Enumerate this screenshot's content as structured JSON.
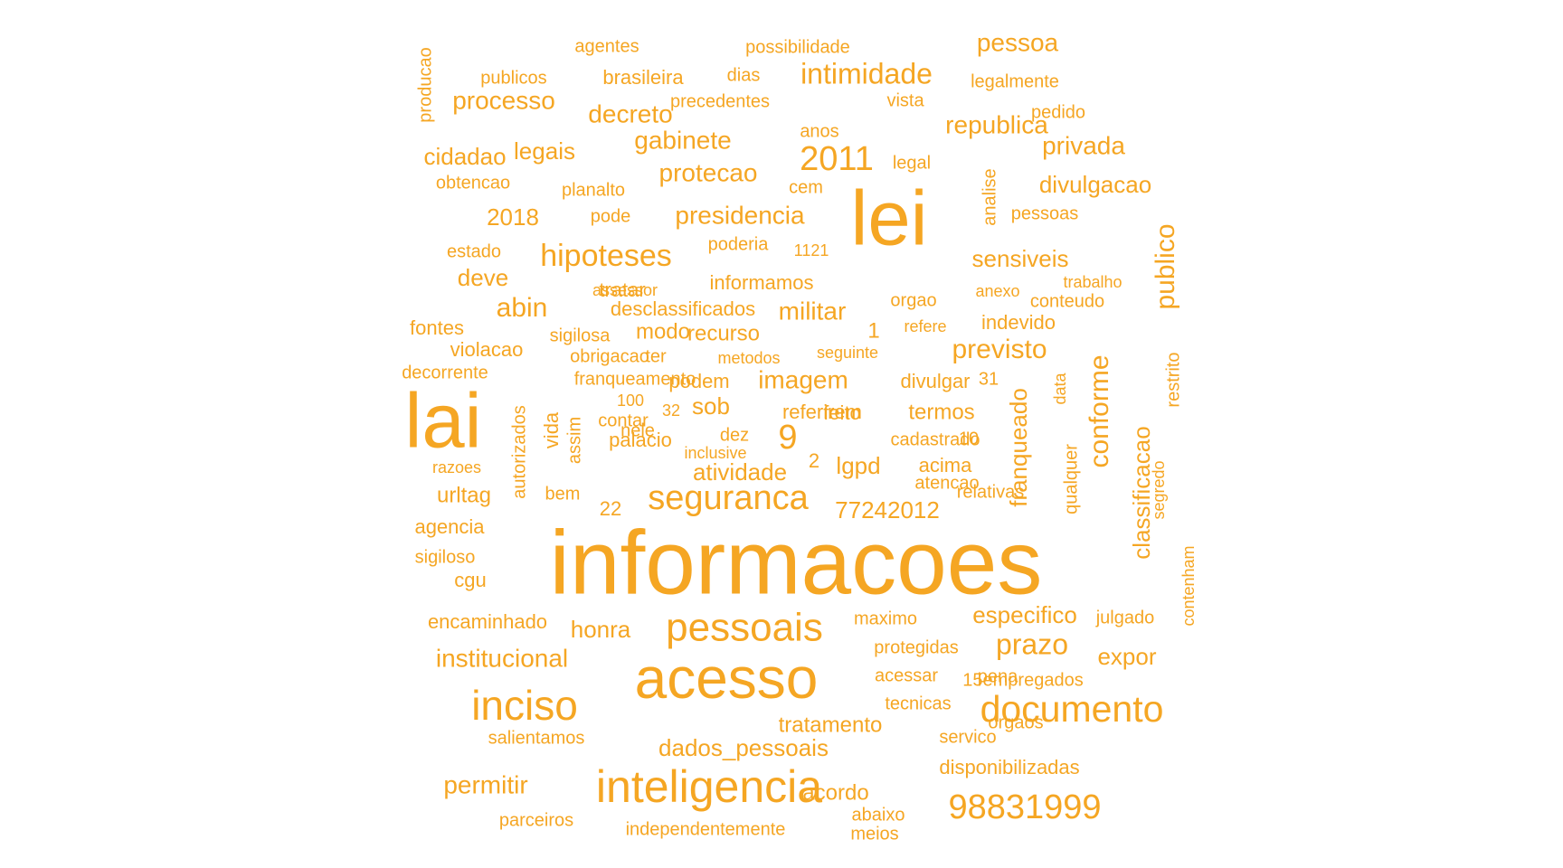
{
  "colors": {
    "word": "#F5A623",
    "background": "#FFFFFF"
  },
  "words": [
    "informacoes",
    "lei",
    "lai",
    "acesso",
    "inteligencia",
    "pessoais",
    "documento",
    "inciso",
    "seguranca",
    "98831999",
    "2011",
    "9",
    "hipoteses",
    "intimidade",
    "presidencia",
    "protecao",
    "gabinete",
    "decreto",
    "processo",
    "republica",
    "abin",
    "pessoa",
    "privada",
    "previsto",
    "conforme",
    "publico",
    "prazo",
    "institucional",
    "permitir",
    "dados_pessoais",
    "imagem",
    "militar",
    "divulgacao",
    "sensiveis",
    "cidadao",
    "legais",
    "2018",
    "deve",
    "lgpd",
    "77242012",
    "classificacao",
    "franqueado",
    "expor",
    "especifico",
    "honra",
    "atividade",
    "sob",
    "urltag",
    "acordo",
    "tratamento",
    "recurso",
    "modo",
    "termos",
    "indevido",
    "acima",
    "vida",
    "agentes",
    "possibilidade",
    "brasileira",
    "publicos",
    "dias",
    "legalmente",
    "precedentes",
    "vista",
    "anos",
    "pedido",
    "producao",
    "legal",
    "obtencao",
    "planalto",
    "cem",
    "analise",
    "pessoas",
    "pode",
    "estado",
    "poderia",
    "1121",
    "informamos",
    "trabalho",
    "assessor",
    "tratar",
    "orgao",
    "anexo",
    "conteudo",
    "desclassificados",
    "fontes",
    "1",
    "refere",
    "violacao",
    "sigilosa",
    "obrigacao",
    "ter",
    "metodos",
    "seguinte",
    "decorrente",
    "franqueamento",
    "podem",
    "divulgar",
    "31",
    "restrito",
    "data",
    "100",
    "contar",
    "32",
    "referirem",
    "feito",
    "palacio",
    "nele",
    "dez",
    "cadastrado",
    "10",
    "autorizados",
    "assim",
    "qualquer",
    "razoes",
    "inclusive",
    "2",
    "relativas",
    "bem",
    "atencao",
    "22",
    "segredo",
    "agencia",
    "sigiloso",
    "cgu",
    "contenham",
    "encaminhado",
    "maximo",
    "julgado",
    "protegidas",
    "acessar",
    "pena",
    "tecnicas",
    "15empregados",
    "salientamos",
    "orgaos",
    "servico",
    "disponibilizadas",
    "parceiros",
    "independentemente",
    "abaixo",
    "meios"
  ]
}
